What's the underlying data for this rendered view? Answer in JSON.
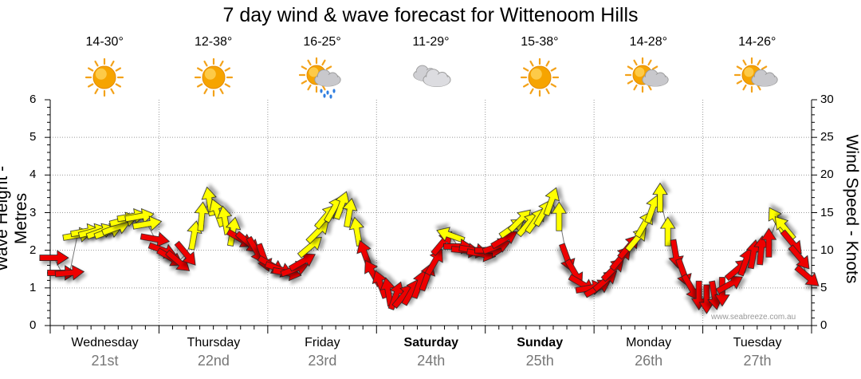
{
  "chart_data": {
    "type": "line",
    "title": "7 day wind & wave forecast for Wittenoom Hills",
    "ylabel_left": "Wave Height - Metres",
    "ylabel_right": "Wind Speed - Knots",
    "ylim_left": [
      0,
      6
    ],
    "ylim_right": [
      0,
      30
    ],
    "yticks_left": [
      "0",
      "1",
      "2",
      "3",
      "4",
      "5",
      "6"
    ],
    "yticks_right": [
      "0",
      "5",
      "10",
      "15",
      "20",
      "25",
      "30"
    ],
    "grid": true,
    "days": [
      {
        "name": "Wednesday",
        "date": "21st",
        "temp": "14-30°",
        "icon": "sun-icon",
        "bold": false
      },
      {
        "name": "Thursday",
        "date": "22nd",
        "temp": "12-38°",
        "icon": "sun-icon",
        "bold": false
      },
      {
        "name": "Friday",
        "date": "23rd",
        "temp": "16-25°",
        "icon": "sun-rain-icon",
        "bold": false
      },
      {
        "name": "Saturday",
        "date": "24th",
        "temp": "11-29°",
        "icon": "cloud-icon",
        "bold": true
      },
      {
        "name": "Sunday",
        "date": "25th",
        "temp": "15-38°",
        "icon": "sun-icon",
        "bold": true
      },
      {
        "name": "Monday",
        "date": "26th",
        "temp": "14-28°",
        "icon": "sun-cloud-icon",
        "bold": false
      },
      {
        "name": "Tuesday",
        "date": "27th",
        "temp": "14-26°",
        "icon": "sun-cloud-icon",
        "bold": false
      }
    ],
    "series": [
      {
        "values": [
          {
            "h": 0.5,
            "ws": 9.0,
            "dir": 90,
            "c": "red"
          },
          {
            "h": 1.5,
            "ws": 7.0,
            "dir": 90,
            "c": "red"
          },
          {
            "h": 2.5,
            "ws": 7.0,
            "dir": 85,
            "c": "red"
          },
          {
            "h": 3.5,
            "ws": 12.0,
            "dir": 80,
            "c": "yellow"
          },
          {
            "h": 4.5,
            "ws": 12.5,
            "dir": 80,
            "c": "yellow"
          },
          {
            "h": 5.5,
            "ws": 12.5,
            "dir": 75,
            "c": "yellow"
          },
          {
            "h": 6.5,
            "ws": 12.5,
            "dir": 70,
            "c": "yellow"
          },
          {
            "h": 7.5,
            "ws": 12.5,
            "dir": 70,
            "c": "yellow"
          },
          {
            "h": 8.5,
            "ws": 13.0,
            "dir": 70,
            "c": "yellow"
          },
          {
            "h": 9.5,
            "ws": 14.0,
            "dir": 75,
            "c": "yellow"
          },
          {
            "h": 10.5,
            "ws": 14.5,
            "dir": 80,
            "c": "yellow"
          },
          {
            "h": 11.5,
            "ws": 14.5,
            "dir": 80,
            "c": "yellow"
          },
          {
            "h": 12.5,
            "ws": 13.5,
            "dir": 80,
            "c": "yellow"
          },
          {
            "h": 13.5,
            "ws": 11.5,
            "dir": 100,
            "c": "red"
          },
          {
            "h": 14.5,
            "ws": 10.0,
            "dir": 110,
            "c": "red"
          },
          {
            "h": 15.5,
            "ws": 9.0,
            "dir": 120,
            "c": "red"
          },
          {
            "h": 16.5,
            "ws": 8.5,
            "dir": 130,
            "c": "red"
          },
          {
            "h": 17.5,
            "ws": 9.5,
            "dir": 140,
            "c": "red"
          },
          {
            "h": 18.5,
            "ws": 12.0,
            "dir": 10,
            "c": "yellow"
          },
          {
            "h": 19.5,
            "ws": 14.5,
            "dir": 5,
            "c": "yellow"
          },
          {
            "h": 20.5,
            "ws": 16.5,
            "dir": 350,
            "c": "yellow"
          },
          {
            "h": 21.5,
            "ws": 15.0,
            "dir": 340,
            "c": "yellow"
          },
          {
            "h": 22.5,
            "ws": 14.0,
            "dir": 350,
            "c": "yellow"
          },
          {
            "h": 23.5,
            "ws": 12.5,
            "dir": 10,
            "c": "yellow"
          },
          {
            "h": 24.5,
            "ws": 11.5,
            "dir": 120,
            "c": "red"
          },
          {
            "h": 25.5,
            "ws": 11.0,
            "dir": 130,
            "c": "red"
          },
          {
            "h": 26.5,
            "ws": 10.0,
            "dir": 150,
            "c": "red"
          },
          {
            "h": 27.5,
            "ws": 9.0,
            "dir": 160,
            "c": "red"
          },
          {
            "h": 28.5,
            "ws": 8.0,
            "dir": 120,
            "c": "red"
          },
          {
            "h": 29.5,
            "ws": 7.5,
            "dir": 110,
            "c": "red"
          },
          {
            "h": 30.5,
            "ws": 7.0,
            "dir": 100,
            "c": "red"
          },
          {
            "h": 31.5,
            "ws": 7.5,
            "dir": 70,
            "c": "red"
          },
          {
            "h": 32.5,
            "ws": 8.5,
            "dir": 60,
            "c": "red"
          },
          {
            "h": 33.5,
            "ws": 10.5,
            "dir": 50,
            "c": "yellow"
          },
          {
            "h": 34.5,
            "ws": 12.5,
            "dir": 45,
            "c": "yellow"
          },
          {
            "h": 35.5,
            "ws": 14.5,
            "dir": 40,
            "c": "yellow"
          },
          {
            "h": 36.5,
            "ws": 15.5,
            "dir": 30,
            "c": "yellow"
          },
          {
            "h": 37.5,
            "ws": 16.0,
            "dir": 20,
            "c": "yellow"
          },
          {
            "h": 38.5,
            "ws": 15.0,
            "dir": 10,
            "c": "yellow"
          },
          {
            "h": 39.5,
            "ws": 12.5,
            "dir": 350,
            "c": "yellow"
          },
          {
            "h": 40.5,
            "ws": 9.5,
            "dir": 340,
            "c": "red"
          },
          {
            "h": 41.5,
            "ws": 7.0,
            "dir": 330,
            "c": "red"
          },
          {
            "h": 42.5,
            "ws": 5.5,
            "dir": 340,
            "c": "red"
          },
          {
            "h": 43.5,
            "ws": 4.5,
            "dir": 350,
            "c": "red"
          },
          {
            "h": 44.5,
            "ws": 4.0,
            "dir": 20,
            "c": "red"
          },
          {
            "h": 45.5,
            "ws": 4.0,
            "dir": 40,
            "c": "red"
          },
          {
            "h": 46.5,
            "ws": 4.5,
            "dir": 30,
            "c": "red"
          },
          {
            "h": 47.5,
            "ws": 5.5,
            "dir": 20,
            "c": "red"
          },
          {
            "h": 48.5,
            "ws": 6.5,
            "dir": 20,
            "c": "red"
          },
          {
            "h": 49.5,
            "ws": 8.5,
            "dir": 30,
            "c": "red"
          },
          {
            "h": 50.5,
            "ws": 11.0,
            "dir": 40,
            "c": "red"
          },
          {
            "h": 51.5,
            "ws": 12.0,
            "dir": 290,
            "c": "yellow"
          },
          {
            "h": 52.5,
            "ws": 10.5,
            "dir": 90,
            "c": "red"
          },
          {
            "h": 53.5,
            "ws": 10.0,
            "dir": 95,
            "c": "red"
          },
          {
            "h": 54.5,
            "ws": 10.0,
            "dir": 100,
            "c": "red"
          },
          {
            "h": 55.5,
            "ws": 9.5,
            "dir": 100,
            "c": "red"
          },
          {
            "h": 56.5,
            "ws": 10.0,
            "dir": 90,
            "c": "red"
          },
          {
            "h": 57.5,
            "ws": 10.5,
            "dir": 70,
            "c": "red"
          },
          {
            "h": 58.5,
            "ws": 11.5,
            "dir": 60,
            "c": "red"
          },
          {
            "h": 59.5,
            "ws": 13.0,
            "dir": 55,
            "c": "yellow"
          },
          {
            "h": 60.5,
            "ws": 14.0,
            "dir": 45,
            "c": "yellow"
          },
          {
            "h": 61.5,
            "ws": 13.5,
            "dir": 40,
            "c": "yellow"
          },
          {
            "h": 62.5,
            "ws": 14.0,
            "dir": 35,
            "c": "yellow"
          },
          {
            "h": 63.5,
            "ws": 15.0,
            "dir": 30,
            "c": "yellow"
          },
          {
            "h": 64.5,
            "ws": 16.5,
            "dir": 20,
            "c": "yellow"
          },
          {
            "h": 65.5,
            "ws": 14.5,
            "dir": 0,
            "c": "yellow"
          },
          {
            "h": 66.5,
            "ws": 9.0,
            "dir": 160,
            "c": "red"
          },
          {
            "h": 67.5,
            "ws": 7.0,
            "dir": 150,
            "c": "red"
          },
          {
            "h": 68.5,
            "ws": 5.5,
            "dir": 120,
            "c": "red"
          },
          {
            "h": 69.5,
            "ws": 5.0,
            "dir": 80,
            "c": "red"
          },
          {
            "h": 70.5,
            "ws": 5.0,
            "dir": 60,
            "c": "red"
          },
          {
            "h": 71.5,
            "ws": 6.0,
            "dir": 50,
            "c": "red"
          },
          {
            "h": 72.5,
            "ws": 7.5,
            "dir": 45,
            "c": "red"
          },
          {
            "h": 73.5,
            "ws": 9.0,
            "dir": 40,
            "c": "red"
          },
          {
            "h": 74.5,
            "ws": 10.5,
            "dir": 40,
            "c": "red"
          },
          {
            "h": 75.5,
            "ws": 11.5,
            "dir": 40,
            "c": "yellow"
          },
          {
            "h": 76.5,
            "ws": 13.5,
            "dir": 30,
            "c": "yellow"
          },
          {
            "h": 77.5,
            "ws": 15.5,
            "dir": 20,
            "c": "yellow"
          },
          {
            "h": 78.5,
            "ws": 17.0,
            "dir": 0,
            "c": "yellow"
          },
          {
            "h": 79.5,
            "ws": 12.5,
            "dir": 0,
            "c": "yellow"
          },
          {
            "h": 80.5,
            "ws": 9.5,
            "dir": 170,
            "c": "red"
          },
          {
            "h": 81.5,
            "ws": 7.0,
            "dir": 160,
            "c": "red"
          },
          {
            "h": 82.5,
            "ws": 5.0,
            "dir": 150,
            "c": "red"
          },
          {
            "h": 83.5,
            "ws": 4.0,
            "dir": 180,
            "c": "red"
          },
          {
            "h": 84.5,
            "ws": 3.5,
            "dir": 180,
            "c": "red"
          },
          {
            "h": 85.5,
            "ws": 4.0,
            "dir": 170,
            "c": "red"
          },
          {
            "h": 86.5,
            "ws": 4.5,
            "dir": 180,
            "c": "red"
          },
          {
            "h": 87.5,
            "ws": 5.5,
            "dir": 60,
            "c": "red"
          },
          {
            "h": 88.5,
            "ws": 7.5,
            "dir": 50,
            "c": "red"
          },
          {
            "h": 89.5,
            "ws": 8.5,
            "dir": 20,
            "c": "red"
          },
          {
            "h": 90.5,
            "ws": 9.5,
            "dir": 10,
            "c": "red"
          },
          {
            "h": 91.5,
            "ws": 10.0,
            "dir": 5,
            "c": "red"
          },
          {
            "h": 92.5,
            "ws": 11.0,
            "dir": 0,
            "c": "red"
          },
          {
            "h": 93.5,
            "ws": 14.0,
            "dir": 330,
            "c": "yellow"
          },
          {
            "h": 94.5,
            "ws": 13.0,
            "dir": 320,
            "c": "yellow"
          },
          {
            "h": 95.5,
            "ws": 11.0,
            "dir": 140,
            "c": "red"
          },
          {
            "h": 96.5,
            "ws": 9.0,
            "dir": 140,
            "c": "red"
          },
          {
            "h": 97.5,
            "ws": 6.5,
            "dir": 130,
            "c": "red"
          }
        ]
      }
    ]
  },
  "watermark": "www.seabreeze.com.au",
  "colors": {
    "arrow_red": "#ee0000",
    "arrow_yellow": "#ffff00",
    "grid": "#999999"
  }
}
